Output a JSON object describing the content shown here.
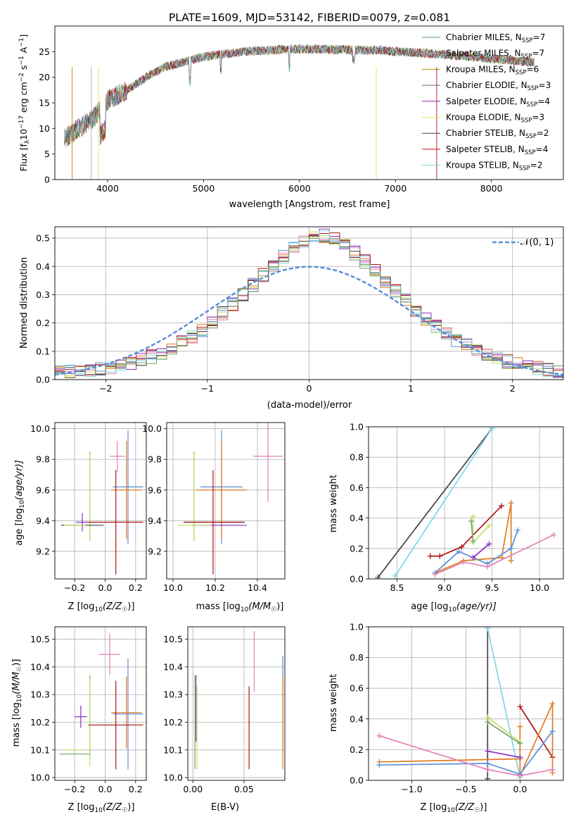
{
  "colors": {
    "Chabrier MILES": "#4c9a8e",
    "Salpeter MILES": "#b0b0b0",
    "Kroupa MILES": "#b5860f",
    "Chabrier ELODIE": "#4a7a5e",
    "Salpeter ELODIE": "#9c1faa",
    "Kroupa ELODIE": "#e4e36c",
    "Chabrier STELIB": "#444444",
    "Salpeter STELIB": "#b01212",
    "Kroupa STELIB": "#7fd7e0",
    "blue": "#5b8fd9",
    "orange": "#e07b20",
    "pink": "#e57fb6",
    "lime": "#c4e05e",
    "purple": "#8c2fc0",
    "red": "#b01212",
    "dark": "#444444",
    "cyan": "#7fd7e0",
    "green": "#7aa36a"
  },
  "chart_data": [
    {
      "id": "spectrum",
      "type": "line",
      "title": "PLATE=1609, MJD=53142, FIBERID=0079, z=0.081",
      "xlabel": "wavelength [Angstrom, rest frame]",
      "ylabel_main": "Flux [f",
      "ylabel_sub": "λ",
      "ylabel_mid": "10",
      "ylabel_sup1": "−17",
      "ylabel_tail": " erg cm",
      "ylabel_sup2": "−2",
      "ylabel_tail2": " s",
      "ylabel_sup3": "−1",
      "ylabel_tail3": " A",
      "ylabel_sup4": "−1",
      "ylabel_end": "]",
      "xlim": [
        3450,
        8750
      ],
      "ylim": [
        0,
        30
      ],
      "xticks": [
        4000,
        5000,
        6000,
        7000,
        8000
      ],
      "yticks": [
        0,
        5,
        10,
        15,
        20,
        25
      ],
      "legend": [
        {
          "model": "Chabrier MILES",
          "nssp": "7"
        },
        {
          "model": "Salpeter MILES",
          "nssp": "7"
        },
        {
          "model": "Kroupa MILES",
          "nssp": "6"
        },
        {
          "model": "Chabrier ELODIE",
          "nssp": "3"
        },
        {
          "model": "Salpeter ELODIE",
          "nssp": "4"
        },
        {
          "model": "Kroupa ELODIE",
          "nssp": "3"
        },
        {
          "model": "Chabrier STELIB",
          "nssp": "2"
        },
        {
          "model": "Salpeter STELIB",
          "nssp": "4"
        },
        {
          "model": "Kroupa STELIB",
          "nssp": "2"
        }
      ],
      "continuum": [
        [
          3550,
          8
        ],
        [
          3700,
          10
        ],
        [
          3850,
          12
        ],
        [
          4000,
          15.5
        ],
        [
          4200,
          17.5
        ],
        [
          4400,
          20
        ],
        [
          4600,
          22
        ],
        [
          4800,
          23
        ],
        [
          5000,
          24
        ],
        [
          5200,
          24.5
        ],
        [
          5400,
          25
        ],
        [
          5600,
          25.2
        ],
        [
          5800,
          25.4
        ],
        [
          6000,
          25.5
        ],
        [
          6200,
          25.5
        ],
        [
          6400,
          25.4
        ],
        [
          6600,
          25.3
        ],
        [
          6800,
          25.3
        ],
        [
          7000,
          25
        ],
        [
          7200,
          24.8
        ],
        [
          7400,
          24.6
        ],
        [
          7600,
          24.3
        ],
        [
          7800,
          24
        ],
        [
          8000,
          23.6
        ],
        [
          8200,
          23.3
        ],
        [
          8400,
          23
        ]
      ]
    },
    {
      "id": "residuals",
      "type": "line",
      "xlabel": "(data-model)/error",
      "ylabel": "Normed distribution",
      "xlim": [
        -2.5,
        2.5
      ],
      "ylim": [
        0,
        0.54
      ],
      "xticks": [
        -2,
        -1,
        0,
        1,
        2
      ],
      "yticks": [
        0.0,
        0.1,
        0.2,
        0.3,
        0.4,
        0.5
      ],
      "legend_label": "𝒩(0, 1)",
      "hist_colors": [
        "#5b8fd9",
        "#e07b20",
        "#c4e05e",
        "#8c2fc0",
        "#e57fb6",
        "#b01212",
        "#444444",
        "#7fd7e0",
        "#7aa36a"
      ]
    },
    {
      "id": "age_vs_Z",
      "type": "scatter",
      "xlabel": "Z [log",
      "xlabel_sub": "10",
      "xlabel_tail": "(Z/Z",
      "xlabel_sub2": "☉",
      "xlabel_end": ")]",
      "ylabel": "age  [log",
      "ylabel_sub": "10",
      "ylabel_tail": "(age/yr)]",
      "xlim": [
        -0.33,
        0.27
      ],
      "ylim": [
        9.02,
        10.04
      ],
      "xticks": [
        -0.2,
        0.0,
        0.2
      ],
      "yticks": [
        9.2,
        9.4,
        9.6,
        9.8,
        10.0
      ],
      "points": [
        {
          "x": 0.15,
          "y": 9.62,
          "xerr": 0.1,
          "yerr": 0.37,
          "color": "blue"
        },
        {
          "x": 0.14,
          "y": 9.6,
          "xerr": 0.1,
          "yerr": 0.32,
          "color": "orange"
        },
        {
          "x": 0.08,
          "y": 9.82,
          "xerr": 0.05,
          "yerr": 0.1,
          "color": "pink"
        },
        {
          "x": -0.1,
          "y": 9.56,
          "xerr": 0.001,
          "yerr": 0.29,
          "color": "green"
        },
        {
          "x": -0.1,
          "y": 9.56,
          "xerr": 0.001,
          "yerr": 0.28,
          "color": "lime"
        },
        {
          "x": -0.15,
          "y": 9.39,
          "xerr": 0.04,
          "yerr": 0.06,
          "color": "purple"
        },
        {
          "x": -0.15,
          "y": 9.37,
          "xerr": 0.14,
          "yerr": 0.001,
          "color": "dark"
        },
        {
          "x": -0.2,
          "y": 9.37,
          "xerr": 0.07,
          "yerr": 0.001,
          "color": "lime"
        },
        {
          "x": 0.07,
          "y": 9.39,
          "xerr": 0.18,
          "yerr": 0.34,
          "color": "red"
        }
      ]
    },
    {
      "id": "age_vs_mass",
      "type": "scatter",
      "xlabel": "mass [log",
      "xlabel_sub": "10",
      "xlabel_tail": "(M/M",
      "xlabel_sub2": "☉",
      "xlabel_end": ")]",
      "xlim": [
        9.97,
        10.53
      ],
      "ylim": [
        9.02,
        10.04
      ],
      "xticks": [
        10.0,
        10.2,
        10.4
      ],
      "yticks": [
        9.2,
        9.4,
        9.6,
        9.8,
        10.0
      ],
      "points": [
        {
          "x": 10.23,
          "y": 9.62,
          "xerr": 0.1,
          "yerr": 0.37,
          "color": "blue"
        },
        {
          "x": 10.23,
          "y": 9.6,
          "xerr": 0.12,
          "yerr": 0.32,
          "color": "orange"
        },
        {
          "x": 10.45,
          "y": 9.82,
          "xerr": 0.07,
          "yerr": 0.3,
          "color": "pink"
        },
        {
          "x": 10.1,
          "y": 9.56,
          "xerr": 0.001,
          "yerr": 0.29,
          "color": "green"
        },
        {
          "x": 10.1,
          "y": 9.56,
          "xerr": 0.001,
          "yerr": 0.28,
          "color": "lime"
        },
        {
          "x": 10.22,
          "y": 9.37,
          "xerr": 0.13,
          "yerr": 0.001,
          "color": "purple"
        },
        {
          "x": 10.2,
          "y": 9.39,
          "xerr": 0.14,
          "yerr": 0.001,
          "color": "dark"
        },
        {
          "x": 10.1,
          "y": 9.37,
          "xerr": 0.08,
          "yerr": 0.001,
          "color": "lime"
        },
        {
          "x": 10.19,
          "y": 9.39,
          "xerr": 0.14,
          "yerr": 0.34,
          "color": "red"
        }
      ]
    },
    {
      "id": "mass_weight_vs_age",
      "type": "line",
      "xlabel": "age  [log",
      "xlabel_sub": "10",
      "xlabel_tail": "(age/yr)]",
      "ylabel": "mass weight",
      "xlim": [
        8.2,
        10.25
      ],
      "ylim": [
        0,
        1
      ],
      "xticks": [
        8.5,
        9.0,
        9.5,
        10.0
      ],
      "yticks": [
        0.0,
        0.2,
        0.4,
        0.6,
        0.8,
        1.0
      ],
      "series": [
        {
          "color": "dark",
          "points": [
            [
              8.3,
              0.01
            ],
            [
              9.5,
              0.99
            ]
          ]
        },
        {
          "color": "cyan",
          "points": [
            [
              8.48,
              0.02
            ],
            [
              9.5,
              0.99
            ]
          ]
        },
        {
          "color": "red",
          "points": [
            [
              8.85,
              0.15
            ],
            [
              8.95,
              0.15
            ],
            [
              9.18,
              0.21
            ],
            [
              9.6,
              0.48
            ]
          ]
        },
        {
          "color": "lime",
          "points": [
            [
              9.3,
              0.41
            ],
            [
              9.3,
              0.24
            ],
            [
              9.47,
              0.35
            ]
          ]
        },
        {
          "color": "orange",
          "points": [
            [
              8.9,
              0.04
            ],
            [
              9.2,
              0.12
            ],
            [
              9.6,
              0.14
            ],
            [
              9.7,
              0.5
            ],
            [
              9.7,
              0.12
            ]
          ]
        },
        {
          "color": "blue",
          "points": [
            [
              8.9,
              0.04
            ],
            [
              9.15,
              0.18
            ],
            [
              9.45,
              0.1
            ],
            [
              9.7,
              0.2
            ],
            [
              9.77,
              0.32
            ]
          ]
        },
        {
          "color": "pink",
          "points": [
            [
              8.9,
              0.03
            ],
            [
              9.2,
              0.11
            ],
            [
              9.45,
              0.08
            ],
            [
              10.15,
              0.29
            ]
          ]
        },
        {
          "color": "purple",
          "points": [
            [
              9.3,
              0.14
            ],
            [
              9.47,
              0.23
            ]
          ]
        },
        {
          "color": "green",
          "points": [
            [
              9.28,
              0.38
            ],
            [
              9.3,
              0.25
            ]
          ]
        }
      ]
    },
    {
      "id": "mass_vs_Z",
      "type": "scatter",
      "xlabel": "Z [log",
      "xlabel_sub": "10",
      "xlabel_tail": "(Z/Z",
      "xlabel_sub2": "☉",
      "xlabel_end": ")]",
      "ylabel": "mass [log",
      "ylabel_sub": "10",
      "ylabel_tail": "(M/M",
      "ylabel_sub2": "☉",
      "ylabel_end": ")]",
      "xlim": [
        -0.33,
        0.27
      ],
      "ylim": [
        9.99,
        10.545
      ],
      "xticks": [
        -0.2,
        0.0,
        0.2
      ],
      "yticks": [
        10.0,
        10.1,
        10.2,
        10.3,
        10.4,
        10.5
      ],
      "points": [
        {
          "x": 0.15,
          "y": 10.23,
          "xerr": 0.1,
          "yerr": 0.2,
          "color": "blue"
        },
        {
          "x": 0.14,
          "y": 10.235,
          "xerr": 0.1,
          "yerr": 0.13,
          "color": "orange"
        },
        {
          "x": 0.03,
          "y": 10.445,
          "xerr": 0.07,
          "yerr": 0.075,
          "color": "pink"
        },
        {
          "x": -0.1,
          "y": 10.22,
          "xerr": 0.001,
          "yerr": 0.15,
          "color": "green"
        },
        {
          "x": -0.16,
          "y": 10.22,
          "xerr": 0.04,
          "yerr": 0.04,
          "color": "purple"
        },
        {
          "x": -0.2,
          "y": 10.1,
          "xerr": 0.06,
          "yerr": 0.001,
          "color": "lime"
        },
        {
          "x": -0.1,
          "y": 10.2,
          "xerr": 0.001,
          "yerr": 0.16,
          "color": "lime"
        },
        {
          "x": -0.2,
          "y": 10.085,
          "xerr": 0.1,
          "yerr": 0.001,
          "color": "green"
        },
        {
          "x": 0.07,
          "y": 10.19,
          "xerr": 0.18,
          "yerr": 0.16,
          "color": "red"
        }
      ]
    },
    {
      "id": "mass_vs_EBV",
      "type": "scatter",
      "xlabel": "E(B-V)",
      "xlim": [
        -0.005,
        0.09
      ],
      "ylim": [
        9.99,
        10.545
      ],
      "xticks": [
        0.0,
        0.05
      ],
      "xtick_labels": [
        "0.00",
        "0.05"
      ],
      "yticks": [
        10.0,
        10.1,
        10.2,
        10.3,
        10.4,
        10.5
      ],
      "points": [
        {
          "x": 0.088,
          "y": 10.26,
          "yerr": 0.18,
          "color": "blue"
        },
        {
          "x": 0.088,
          "y": 10.2,
          "yerr": 0.17,
          "color": "orange"
        },
        {
          "x": 0.06,
          "y": 10.42,
          "yerr": 0.11,
          "color": "pink"
        },
        {
          "x": 0.055,
          "y": 10.18,
          "yerr": 0.15,
          "color": "red"
        },
        {
          "x": 0.003,
          "y": 10.25,
          "yerr": 0.12,
          "color": "purple"
        },
        {
          "x": 0.002,
          "y": 10.2,
          "yerr": 0.17,
          "color": "green"
        },
        {
          "x": 0.004,
          "y": 10.18,
          "yerr": 0.15,
          "color": "lime"
        }
      ]
    },
    {
      "id": "mass_weight_vs_Z",
      "type": "line",
      "xlabel": "Z [log",
      "xlabel_sub": "10",
      "xlabel_tail": "(Z/Z",
      "xlabel_sub2": "☉",
      "xlabel_end": ")]",
      "ylabel": "mass weight",
      "xlim": [
        -1.4,
        0.4
      ],
      "ylim": [
        0,
        1
      ],
      "xticks": [
        -1.0,
        -0.5,
        0.0
      ],
      "xtick_labels": [
        "−1.0",
        "−0.5",
        "0.0"
      ],
      "yticks": [
        0.0,
        0.2,
        0.4,
        0.6,
        0.8,
        1.0
      ],
      "series": [
        {
          "color": "dark",
          "points": [
            [
              -0.3,
              0.99
            ],
            [
              -0.3,
              0.01
            ]
          ]
        },
        {
          "color": "cyan",
          "points": [
            [
              -0.3,
              0.99
            ],
            [
              0.0,
              0.02
            ]
          ]
        },
        {
          "color": "red",
          "points": [
            [
              0.0,
              0.48
            ],
            [
              0.3,
              0.15
            ]
          ]
        },
        {
          "color": "orange",
          "points": [
            [
              -1.3,
              0.12
            ],
            [
              0.0,
              0.14
            ],
            [
              0.0,
              0.35
            ],
            [
              0.0,
              0.03
            ],
            [
              0.3,
              0.5
            ],
            [
              0.3,
              0.05
            ]
          ]
        },
        {
          "color": "blue",
          "points": [
            [
              -1.3,
              0.1
            ],
            [
              -0.3,
              0.11
            ],
            [
              0.0,
              0.04
            ],
            [
              0.3,
              0.32
            ]
          ]
        },
        {
          "color": "pink",
          "points": [
            [
              -1.3,
              0.29
            ],
            [
              -0.3,
              0.07
            ],
            [
              0.0,
              0.03
            ],
            [
              0.3,
              0.07
            ]
          ]
        },
        {
          "color": "lime",
          "points": [
            [
              -0.3,
              0.41
            ],
            [
              0.0,
              0.25
            ]
          ]
        },
        {
          "color": "green",
          "points": [
            [
              -0.3,
              0.38
            ],
            [
              0.0,
              0.24
            ]
          ]
        },
        {
          "color": "purple",
          "points": [
            [
              -0.3,
              0.19
            ],
            [
              0.0,
              0.15
            ]
          ]
        }
      ]
    }
  ]
}
